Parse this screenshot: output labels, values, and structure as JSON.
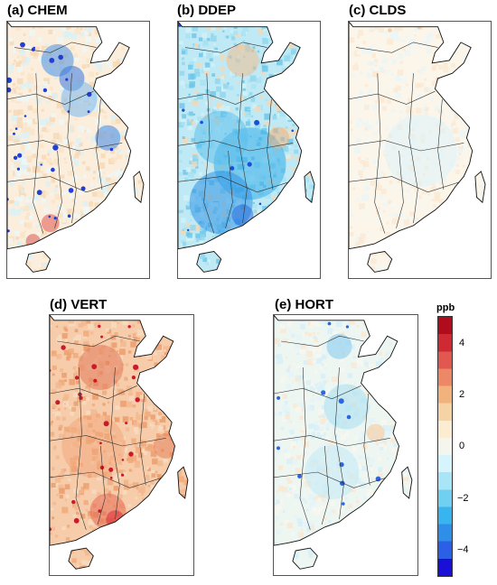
{
  "panels": [
    {
      "id": "a",
      "title": "(a) CHEM",
      "mode": "chem"
    },
    {
      "id": "b",
      "title": "(b) DDEP",
      "mode": "ddep"
    },
    {
      "id": "c",
      "title": "(c) CLDS",
      "mode": "clds"
    },
    {
      "id": "d",
      "title": "(d) VERT",
      "mode": "vert"
    },
    {
      "id": "e",
      "title": "(e) HORT",
      "mode": "hort"
    }
  ],
  "colorbar": {
    "unit": "ppb",
    "ticks": [
      "4",
      "2",
      "0",
      "−2",
      "−4"
    ],
    "min": -5,
    "max": 5,
    "colors": [
      "#1a0fd6",
      "#2a5fe6",
      "#2f8fe8",
      "#38b4ee",
      "#6fd0f2",
      "#a8e5f6",
      "#d6f4fb",
      "#f4f6ee",
      "#fbecd2",
      "#f6d3a4",
      "#f2b27c",
      "#ec8866",
      "#e0584f",
      "#cf2a33",
      "#b10b1e"
    ]
  }
}
